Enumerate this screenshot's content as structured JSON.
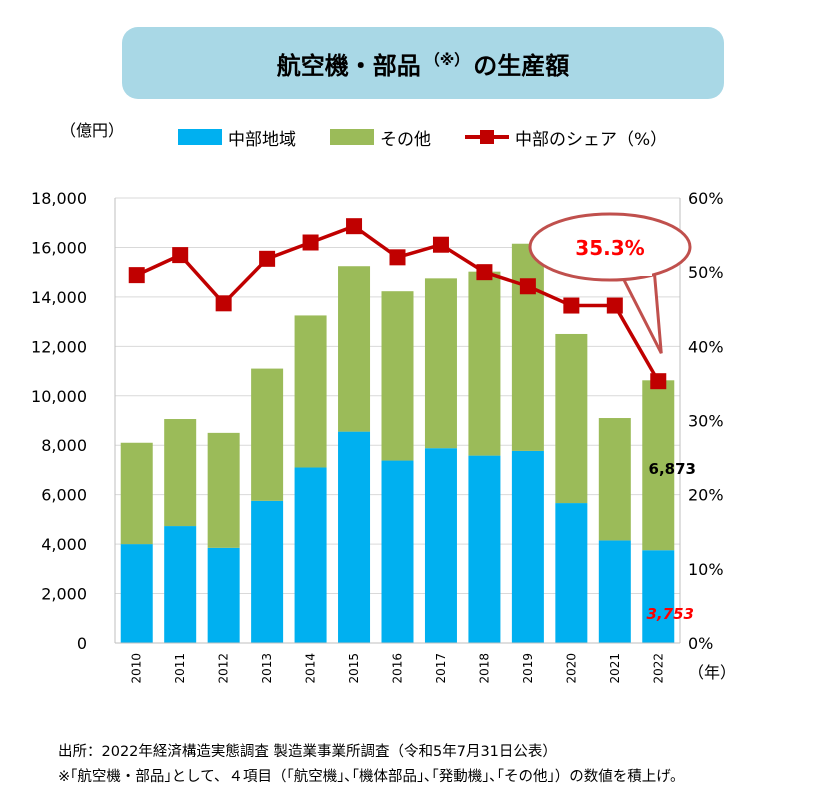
{
  "title": {
    "main": "航空機・部品",
    "note": "（※）",
    "suffix": "の生産額"
  },
  "left_unit": "（億円）",
  "x_unit": "（年）",
  "legend": [
    {
      "label": "中部地域",
      "type": "bar",
      "color": "#00b0f0"
    },
    {
      "label": "その他",
      "type": "bar",
      "color": "#9bbb59"
    },
    {
      "label": "中部のシェア（%）",
      "type": "line",
      "color": "#c00000"
    }
  ],
  "chart_data": {
    "type": "bar",
    "stacked": true,
    "categories": [
      "2010",
      "2011",
      "2012",
      "2013",
      "2014",
      "2015",
      "2016",
      "2017",
      "2018",
      "2019",
      "2020",
      "2021",
      "2022"
    ],
    "series": [
      {
        "name": "中部地域",
        "color": "#00b0f0",
        "values": [
          4000,
          4730,
          3850,
          5750,
          7100,
          8550,
          7380,
          7880,
          7580,
          7770,
          5660,
          4150,
          3753
        ]
      },
      {
        "name": "その他",
        "color": "#9bbb59",
        "values": [
          4100,
          4330,
          4650,
          5350,
          6150,
          6690,
          6850,
          6870,
          7440,
          8380,
          6840,
          4950,
          6873
        ]
      }
    ],
    "line_series": {
      "name": "中部のシェア（%）",
      "color": "#c00000",
      "axis": "right",
      "values": [
        49.6,
        52.3,
        45.8,
        51.8,
        54.0,
        56.2,
        52.0,
        53.7,
        50.0,
        48.1,
        45.5,
        45.5,
        35.3
      ]
    },
    "ylim_left": [
      0,
      18000
    ],
    "yticks_left": [
      "18,000",
      "16,000",
      "14,000",
      "12,000",
      "10,000",
      "8,000",
      "6,000",
      "4,000",
      "2,000",
      "0"
    ],
    "ylim_right": [
      0,
      60
    ],
    "yticks_right": [
      "60%",
      "50%",
      "40%",
      "30%",
      "20%",
      "10%",
      "0%"
    ],
    "grid": "horizontal",
    "annotations": [
      {
        "text": "35.3%",
        "color": "#ff0000",
        "style": "callout-ellipse",
        "border": "#c0504d"
      },
      {
        "text": "6,873",
        "color": "#000000",
        "style": "bold"
      },
      {
        "text": "3,753",
        "color": "#ff0000",
        "style": "bold-italic"
      }
    ]
  },
  "footer": {
    "source": "出所：2022年経済構造実態調査 製造業事業所調査（令和5年7月31日公表）",
    "note": "※｢航空機・部品｣として、４項目（｢航空機｣､｢機体部品｣､｢発動機｣､｢その他｣）の数値を積上げ。"
  }
}
